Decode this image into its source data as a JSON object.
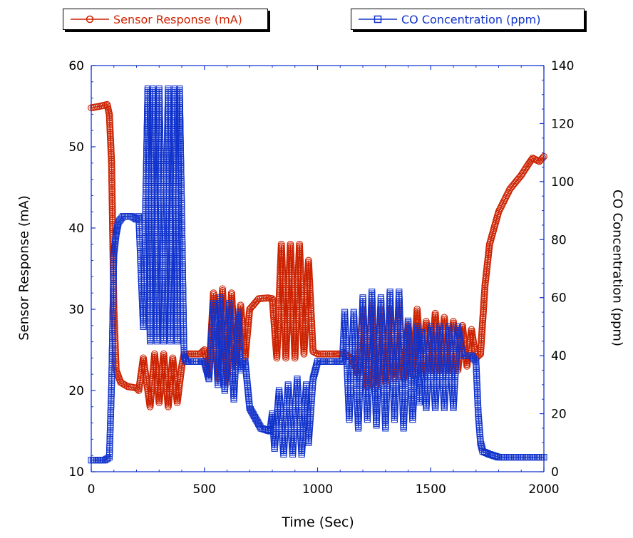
{
  "chart_data": {
    "type": "line",
    "xlabel": "Time (Sec)",
    "ylabel_left": "Sensor Response (mA)",
    "ylabel_right": "CO Concentration (ppm)",
    "xlim": [
      0,
      2000
    ],
    "ylim_left": [
      10,
      60
    ],
    "ylim_right": [
      0,
      140
    ],
    "x_ticks": [
      0,
      500,
      1000,
      1500,
      2000
    ],
    "y_left_ticks": [
      10,
      20,
      30,
      40,
      50,
      60
    ],
    "y_right_ticks": [
      0,
      20,
      40,
      60,
      80,
      100,
      120,
      140
    ],
    "legend_placement": "top",
    "series": [
      {
        "name": "Sensor Response (mA)",
        "axis": "left",
        "color": "#cc2200",
        "marker": "circle",
        "x": [
          0,
          40,
          70,
          80,
          90,
          100,
          110,
          130,
          160,
          200,
          210,
          230,
          260,
          280,
          300,
          320,
          340,
          360,
          380,
          400,
          410,
          440,
          480,
          500,
          520,
          540,
          560,
          580,
          600,
          620,
          640,
          660,
          680,
          700,
          740,
          780,
          800,
          820,
          840,
          860,
          880,
          900,
          920,
          940,
          960,
          980,
          1000,
          1040,
          1080,
          1100,
          1120,
          1150,
          1180,
          1200,
          1220,
          1240,
          1260,
          1280,
          1300,
          1320,
          1340,
          1360,
          1380,
          1400,
          1420,
          1440,
          1460,
          1480,
          1500,
          1520,
          1540,
          1560,
          1580,
          1600,
          1620,
          1640,
          1660,
          1680,
          1700,
          1720,
          1740,
          1760,
          1800,
          1850,
          1900,
          1930,
          1950,
          1980,
          2000
        ],
        "y": [
          54.8,
          55.0,
          55.2,
          54.0,
          48.0,
          30.0,
          22.5,
          21.0,
          20.5,
          20.3,
          20.0,
          24.0,
          18.0,
          24.5,
          18.5,
          24.5,
          18.0,
          24.0,
          18.5,
          23.0,
          24.5,
          24.5,
          24.5,
          25.0,
          22.0,
          32.0,
          21.5,
          32.5,
          21.0,
          32.0,
          23.0,
          30.5,
          24.0,
          30.0,
          31.3,
          31.4,
          31.3,
          24.0,
          38.0,
          24.0,
          38.0,
          24.0,
          38.0,
          24.5,
          36.0,
          24.8,
          24.5,
          24.5,
          24.5,
          24.5,
          24.5,
          24.0,
          22.0,
          30.0,
          20.5,
          30.5,
          20.5,
          30.0,
          21.0,
          30.0,
          21.5,
          30.5,
          21.5,
          28.0,
          22.0,
          30.0,
          22.0,
          28.5,
          22.5,
          29.5,
          22.5,
          29.0,
          22.5,
          28.5,
          22.5,
          28.0,
          23.0,
          27.5,
          24.0,
          24.5,
          33.0,
          38.0,
          42.0,
          44.8,
          46.5,
          47.8,
          48.6,
          48.2,
          48.8
        ]
      },
      {
        "name": "CO Concentration (ppm)",
        "axis": "right",
        "color": "#1133cc",
        "marker": "square",
        "x": [
          0,
          30,
          60,
          80,
          90,
          100,
          110,
          120,
          140,
          160,
          180,
          200,
          210,
          230,
          250,
          260,
          270,
          290,
          300,
          320,
          340,
          350,
          370,
          380,
          390,
          400,
          410,
          420,
          440,
          480,
          500,
          520,
          540,
          560,
          570,
          590,
          610,
          630,
          650,
          660,
          670,
          680,
          700,
          750,
          790,
          800,
          810,
          830,
          850,
          870,
          890,
          910,
          930,
          950,
          960,
          980,
          1000,
          1020,
          1040,
          1080,
          1100,
          1110,
          1120,
          1140,
          1160,
          1180,
          1200,
          1220,
          1240,
          1260,
          1280,
          1300,
          1320,
          1340,
          1360,
          1380,
          1400,
          1420,
          1440,
          1450,
          1460,
          1480,
          1500,
          1520,
          1540,
          1560,
          1580,
          1600,
          1620,
          1640,
          1680,
          1700,
          1710,
          1720,
          1730,
          1760,
          1800,
          1900,
          2000
        ],
        "y": [
          4,
          4,
          4,
          5,
          30,
          75,
          82,
          86,
          88,
          88,
          88,
          87,
          88,
          50,
          132,
          45,
          132,
          45,
          132,
          45,
          132,
          45,
          132,
          45,
          132,
          88,
          40,
          38,
          38,
          38,
          38,
          32,
          58,
          30,
          60,
          28,
          58,
          25,
          55,
          35,
          38,
          38,
          22,
          15,
          14,
          20,
          8,
          28,
          6,
          30,
          6,
          32,
          6,
          30,
          10,
          32,
          38,
          38,
          38,
          38,
          38,
          38,
          55,
          18,
          55,
          15,
          60,
          18,
          62,
          16,
          60,
          15,
          62,
          18,
          62,
          15,
          52,
          18,
          50,
          24,
          48,
          22,
          50,
          22,
          50,
          22,
          50,
          22,
          50,
          40,
          40,
          38,
          20,
          10,
          7,
          6,
          5,
          5,
          5
        ]
      }
    ]
  }
}
